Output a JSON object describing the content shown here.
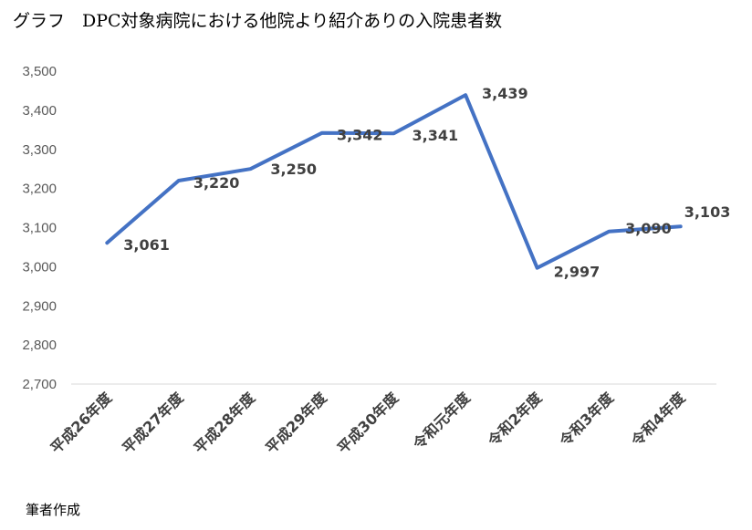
{
  "title": "グラフ　DPC対象病院における他院より紹介ありの入院患者数",
  "source_note": "筆者作成",
  "chart_data": {
    "type": "line",
    "title": "グラフ　DPC対象病院における他院より紹介ありの入院患者数",
    "categories": [
      "平成26年度",
      "平成27年度",
      "平成28年度",
      "平成29年度",
      "平成30年度",
      "令和元年度",
      "令和2年度",
      "令和3年度",
      "令和4年度"
    ],
    "series": [
      {
        "values": [
          3061,
          3220,
          3250,
          3342,
          3341,
          3439,
          2997,
          3090,
          3103
        ],
        "color": "#4472C4"
      }
    ],
    "data_labels": [
      "3,061",
      "3,220",
      "3,250",
      "3,342",
      "3,341",
      "3,439",
      "2,997",
      "3,090",
      "3,103"
    ],
    "ylim": [
      2700,
      3500
    ],
    "yticks": [
      2700,
      2800,
      2900,
      3000,
      3100,
      3200,
      3300,
      3400,
      3500
    ],
    "ytick_labels": [
      "2,700",
      "2,800",
      "2,900",
      "3,000",
      "3,100",
      "3,200",
      "3,300",
      "3,400",
      "3,500"
    ],
    "xlabel": "",
    "ylabel": "",
    "grid": false,
    "legend": "none"
  }
}
